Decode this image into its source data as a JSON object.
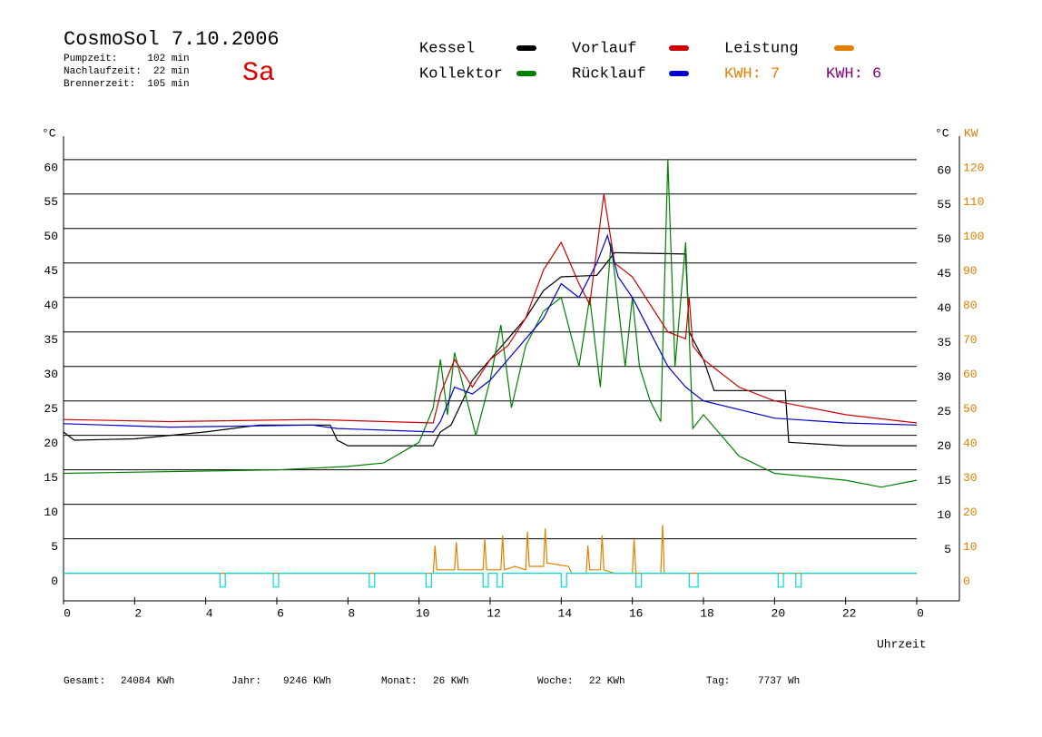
{
  "chart_data": {
    "type": "line",
    "title": "CosmoSol 7.10.2006",
    "info": [
      "Pumpzeit:     102 min",
      "Nachlaufzeit:  22 min",
      "Brennerzeit:  105 min"
    ],
    "weekday": "Sa",
    "y_unit": "°C",
    "y2_unit": "KW",
    "x_label": "Uhrzeit",
    "kwh_labels": [
      {
        "text": "KWH: 7",
        "color": "#e08000"
      },
      {
        "text": "KWH: 6",
        "color": "#800080"
      }
    ],
    "xlim": [
      0,
      25.2
    ],
    "xticks": [
      0,
      2,
      4,
      6,
      8,
      10,
      12,
      14,
      16,
      18,
      20,
      22,
      {
        "value": 24,
        "label": "0"
      }
    ],
    "ylim": [
      -4,
      63.4
    ],
    "yticks": [
      0,
      5,
      10,
      15,
      20,
      25,
      30,
      35,
      40,
      45,
      50,
      55,
      60
    ],
    "yticks_right": [
      5,
      10,
      15,
      20,
      25,
      30,
      35,
      40,
      45,
      50,
      55,
      60
    ],
    "y2lim": [
      -8,
      126.8
    ],
    "y2ticks": [
      0,
      10,
      20,
      30,
      40,
      50,
      60,
      70,
      80,
      90,
      100,
      110,
      120
    ],
    "grid": true,
    "series": [
      {
        "name": "Kessel",
        "color": "#000000",
        "x": [
          0,
          0.3,
          2,
          4,
          5.5,
          7.5,
          7.7,
          8,
          10.4,
          10.6,
          10.9,
          11.5,
          12,
          12.5,
          13,
          13.5,
          14,
          15,
          15.5,
          17.5,
          17.6,
          18,
          18.3,
          20.3,
          20.4,
          22,
          24
        ],
        "values": [
          20.5,
          19.3,
          19.5,
          20.5,
          21.5,
          21.5,
          19.3,
          18.5,
          18.5,
          20.5,
          21.5,
          28,
          31,
          34,
          37,
          41,
          43,
          43.2,
          46.5,
          46.3,
          35,
          31,
          26.5,
          26.5,
          19,
          18.5,
          18.5
        ]
      },
      {
        "name": "Kollektor",
        "color": "#008000",
        "x": [
          0,
          6,
          8,
          9,
          10,
          10.4,
          10.6,
          10.8,
          11,
          11.3,
          11.6,
          12,
          12.3,
          12.6,
          13,
          13.5,
          14,
          14.5,
          14.8,
          15.1,
          15.4,
          15.8,
          16,
          16.2,
          16.5,
          16.8,
          17,
          17.2,
          17.5,
          17.7,
          18,
          19,
          20,
          22,
          23,
          24
        ],
        "values": [
          14.5,
          15,
          15.5,
          16,
          19,
          24,
          31,
          23,
          32,
          26,
          20,
          28,
          36,
          24,
          33,
          38,
          40,
          30,
          40,
          27,
          48,
          30,
          40,
          30,
          25,
          22,
          60,
          30,
          48,
          21,
          23,
          17,
          14.5,
          13.5,
          12.5,
          13.5
        ]
      },
      {
        "name": "Vorlauf",
        "color": "#cc0000",
        "x": [
          0,
          3,
          7,
          10.4,
          10.6,
          11,
          11.5,
          12,
          12.5,
          13,
          13.5,
          14,
          14.5,
          14.8,
          15.2,
          15.5,
          16,
          17,
          17.5,
          17.6,
          17.7,
          18,
          19,
          20,
          22,
          24
        ],
        "values": [
          22.3,
          22,
          22.3,
          21.8,
          26,
          31,
          27,
          31,
          33,
          37,
          44,
          48,
          42,
          39,
          55,
          45,
          43,
          35,
          34,
          40,
          33,
          31,
          27,
          25,
          23,
          21.8
        ]
      },
      {
        "name": "Rücklauf",
        "color": "#0000cc",
        "x": [
          0,
          3,
          7,
          7.7,
          10.4,
          10.6,
          11,
          11.5,
          12,
          12.5,
          13,
          13.5,
          14,
          14.5,
          15,
          15.3,
          15.6,
          16,
          16.5,
          17,
          17.5,
          18,
          20,
          22,
          24
        ],
        "values": [
          21.7,
          21.2,
          21.5,
          21,
          20.5,
          22,
          27,
          26,
          28,
          31,
          34,
          37,
          42,
          40,
          45,
          49,
          43,
          40,
          35,
          30,
          27,
          25,
          22.5,
          21.8,
          21.5
        ]
      },
      {
        "name": "Leistung",
        "color": "#e08000",
        "axis": "y2",
        "x": [
          0,
          10.4,
          10.45,
          10.5,
          11,
          11.05,
          11.1,
          11.8,
          11.85,
          11.9,
          12.3,
          12.35,
          12.4,
          12.7,
          13,
          13.05,
          13.1,
          13.5,
          13.55,
          13.6,
          14.2,
          14.3,
          14.7,
          14.75,
          14.8,
          15.1,
          15.15,
          15.2,
          15.5,
          16,
          16.05,
          16.1,
          16.8,
          16.85,
          16.9,
          24
        ],
        "values": [
          0,
          0,
          8,
          1,
          1,
          9,
          1,
          1,
          10,
          1,
          1,
          11,
          1,
          2,
          1,
          12,
          2,
          2,
          13,
          3,
          2,
          0,
          0,
          8,
          1,
          1,
          11,
          1,
          0,
          0,
          10,
          0,
          0,
          14,
          0,
          0
        ]
      },
      {
        "color": "#00d8d8",
        "x": [
          0,
          4.4,
          4.4,
          4.55,
          4.55,
          5.9,
          5.9,
          6.05,
          6.05,
          8.6,
          8.6,
          8.75,
          8.75,
          10.2,
          10.2,
          10.35,
          10.35,
          11.8,
          11.8,
          11.95,
          11.95,
          12.2,
          12.2,
          12.35,
          12.35,
          14,
          14,
          14.15,
          14.15,
          16.1,
          16.1,
          16.25,
          16.25,
          17.6,
          17.6,
          17.85,
          17.85,
          20.1,
          20.1,
          20.25,
          20.25,
          20.6,
          20.6,
          20.75,
          20.75,
          24
        ],
        "values": [
          0,
          0,
          -2,
          -2,
          0,
          0,
          -2,
          -2,
          0,
          0,
          -2,
          -2,
          0,
          0,
          -2,
          -2,
          0,
          0,
          -2,
          -2,
          0,
          0,
          -2,
          -2,
          0,
          0,
          -2,
          -2,
          0,
          0,
          -2,
          -2,
          0,
          0,
          -2,
          -2,
          0,
          0,
          -2,
          -2,
          0,
          0,
          -2,
          -2,
          0,
          0
        ]
      }
    ],
    "footer": [
      {
        "label": "Gesamt:",
        "value": "24084 KWh"
      },
      {
        "label": "Jahr:",
        "value": "9246 KWh"
      },
      {
        "label": "Monat:",
        "value": "26 KWh"
      },
      {
        "label": "Woche:",
        "value": "22 KWh"
      },
      {
        "label": "Tag:",
        "value": "7737 Wh"
      }
    ]
  }
}
